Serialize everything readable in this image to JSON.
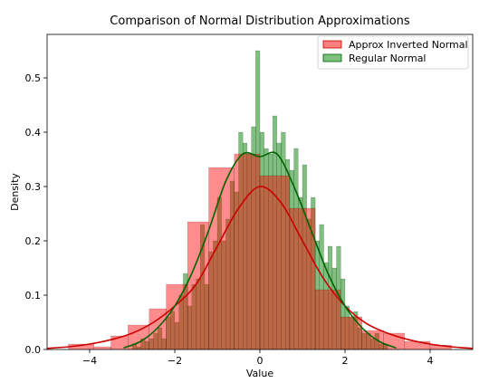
{
  "chart_data": {
    "type": "histogram",
    "title": "Comparison of Normal Distribution Approximations",
    "xlabel": "Value",
    "ylabel": "Density",
    "xlim": [
      -5,
      5
    ],
    "ylim": [
      0,
      0.58
    ],
    "x_ticks": [
      -4,
      -2,
      0,
      2,
      4
    ],
    "y_ticks": [
      0.0,
      0.1,
      0.2,
      0.3,
      0.4,
      0.5
    ],
    "grid": false,
    "legend_position": "top-right",
    "colors": {
      "approx_fill": "#ff0000",
      "approx_line": "#cc0000",
      "regular_fill": "#008000",
      "regular_line": "#006400",
      "overlap": "#7a6b00"
    },
    "series": [
      {
        "name": "Approx Inverted Normal",
        "kind": "histogram",
        "bin_edges": [
          -4.5,
          -3.9,
          -3.5,
          -3.1,
          -2.6,
          -2.2,
          -1.7,
          -1.2,
          -0.6,
          0.0,
          0.7,
          1.3,
          1.9,
          2.4,
          2.9,
          3.4,
          4.0,
          4.5
        ],
        "values": [
          0.01,
          0.005,
          0.025,
          0.045,
          0.075,
          0.12,
          0.235,
          0.335,
          0.36,
          0.32,
          0.26,
          0.11,
          0.06,
          0.035,
          0.03,
          0.015,
          0.008
        ],
        "kde": {
          "x": [
            -5,
            -4.5,
            -4,
            -3.5,
            -3,
            -2.5,
            -2,
            -1.5,
            -1,
            -0.5,
            0,
            0.5,
            1,
            1.5,
            2,
            2.5,
            3,
            3.5,
            4,
            4.5,
            5
          ],
          "y": [
            0.002,
            0.005,
            0.01,
            0.018,
            0.03,
            0.05,
            0.08,
            0.12,
            0.19,
            0.26,
            0.3,
            0.27,
            0.2,
            0.13,
            0.08,
            0.048,
            0.03,
            0.018,
            0.01,
            0.005,
            0.002
          ]
        }
      },
      {
        "name": "Regular Normal",
        "kind": "histogram",
        "bin_edges": [
          -3.0,
          -2.9,
          -2.8,
          -2.7,
          -2.6,
          -2.5,
          -2.4,
          -2.3,
          -2.2,
          -2.1,
          -2.0,
          -1.9,
          -1.8,
          -1.7,
          -1.6,
          -1.5,
          -1.4,
          -1.3,
          -1.2,
          -1.1,
          -1.0,
          -0.9,
          -0.8,
          -0.7,
          -0.6,
          -0.5,
          -0.4,
          -0.3,
          -0.2,
          -0.1,
          0.0,
          0.1,
          0.2,
          0.3,
          0.4,
          0.5,
          0.6,
          0.7,
          0.8,
          0.9,
          1.0,
          1.1,
          1.2,
          1.3,
          1.4,
          1.5,
          1.6,
          1.7,
          1.8,
          1.9,
          2.0,
          2.1,
          2.2,
          2.3,
          2.4,
          2.5,
          2.6,
          2.7,
          2.8,
          2.9,
          3.0
        ],
        "values": [
          0.01,
          0.005,
          0.02,
          0.015,
          0.02,
          0.03,
          0.04,
          0.02,
          0.06,
          0.07,
          0.05,
          0.1,
          0.14,
          0.08,
          0.12,
          0.13,
          0.23,
          0.12,
          0.18,
          0.2,
          0.28,
          0.2,
          0.24,
          0.31,
          0.29,
          0.4,
          0.38,
          0.36,
          0.41,
          0.55,
          0.4,
          0.37,
          0.36,
          0.43,
          0.38,
          0.4,
          0.35,
          0.33,
          0.37,
          0.28,
          0.34,
          0.24,
          0.28,
          0.2,
          0.23,
          0.16,
          0.19,
          0.15,
          0.19,
          0.13,
          0.08,
          0.06,
          0.07,
          0.04,
          0.03,
          0.03,
          0.02,
          0.03,
          0.01,
          0.01
        ],
        "kde": {
          "x": [
            -3.2,
            -2.8,
            -2.4,
            -2.0,
            -1.6,
            -1.2,
            -0.8,
            -0.4,
            0.0,
            0.4,
            0.8,
            1.2,
            1.6,
            2.0,
            2.4,
            2.8,
            3.2
          ],
          "y": [
            0.003,
            0.015,
            0.04,
            0.08,
            0.14,
            0.22,
            0.31,
            0.36,
            0.355,
            0.36,
            0.3,
            0.22,
            0.14,
            0.08,
            0.04,
            0.015,
            0.003
          ]
        }
      }
    ]
  }
}
